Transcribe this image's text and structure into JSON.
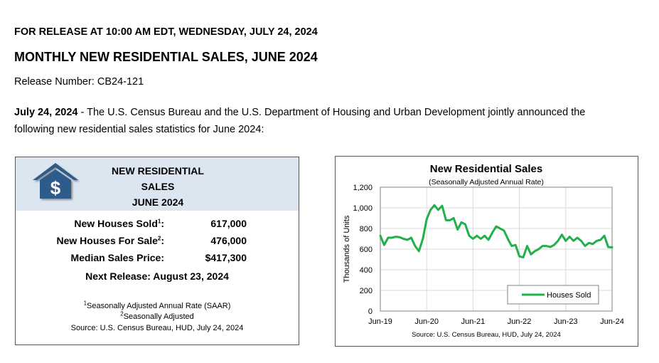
{
  "release": {
    "line1": "FOR RELEASE AT 10:00 AM EDT, WEDNESDAY, JULY 24, 2024",
    "title": "MONTHLY NEW RESIDENTIAL SALES, JUNE 2024",
    "release_number": "Release Number: CB24-121",
    "intro_date": "July 24, 2024",
    "intro_text": " - The U.S. Census Bureau and the U.S. Department of Housing and Urban Development jointly announced the following new residential sales statistics for June 2024:"
  },
  "summary": {
    "logo_icon": "house-dollar-icon",
    "title_lines": [
      "NEW RESIDENTIAL",
      "SALES",
      "JUNE 2024"
    ],
    "rows": [
      {
        "label": "New Houses Sold",
        "sup": "1",
        "suffix": ":",
        "value": "617,000"
      },
      {
        "label": "New Houses For Sale",
        "sup": "2",
        "suffix": ":",
        "value": "476,000"
      },
      {
        "label": "Median Sales Price:",
        "sup": "",
        "suffix": "",
        "value": "$417,300"
      }
    ],
    "next_release": "Next Release:  August 23, 2024",
    "footnote1_sup": "1",
    "footnote1": "Seasonally Adjusted Annual Rate (SAAR)",
    "footnote2_sup": "2",
    "footnote2": "Seasonally Adjusted",
    "source": "Source:  U.S. Census Bureau, HUD, July 24, 2024",
    "colors": {
      "header_bg": "#dce6f1",
      "logo": "#2e5c8a"
    }
  },
  "chart_data": {
    "type": "line",
    "title": "New Residential Sales",
    "subtitle": "(Seasonally Adjusted Annual Rate)",
    "ylabel": "Thousands of Units",
    "xlabel": "",
    "ylim": [
      0,
      1200
    ],
    "yticks": [
      0,
      200,
      400,
      600,
      800,
      1000,
      1200
    ],
    "ytick_labels": [
      "0",
      "200",
      "400",
      "600",
      "800",
      "1,000",
      "1,200"
    ],
    "xticks": [
      "Jun-19",
      "Jun-20",
      "Jun-21",
      "Jun-22",
      "Jun-23",
      "Jun-24"
    ],
    "grid": true,
    "legend": "bottom-right",
    "source": "Source:  U.S. Census Bureau, HUD, July 24, 2024",
    "series": [
      {
        "name": "Houses Sold",
        "color": "#22b04b",
        "x": [
          "2019-06",
          "2019-07",
          "2019-08",
          "2019-09",
          "2019-10",
          "2019-11",
          "2019-12",
          "2020-01",
          "2020-02",
          "2020-03",
          "2020-04",
          "2020-05",
          "2020-06",
          "2020-07",
          "2020-08",
          "2020-09",
          "2020-10",
          "2020-11",
          "2020-12",
          "2021-01",
          "2021-02",
          "2021-03",
          "2021-04",
          "2021-05",
          "2021-06",
          "2021-07",
          "2021-08",
          "2021-09",
          "2021-10",
          "2021-11",
          "2021-12",
          "2022-01",
          "2022-02",
          "2022-03",
          "2022-04",
          "2022-05",
          "2022-06",
          "2022-07",
          "2022-08",
          "2022-09",
          "2022-10",
          "2022-11",
          "2022-12",
          "2023-01",
          "2023-02",
          "2023-03",
          "2023-04",
          "2023-05",
          "2023-06",
          "2023-07",
          "2023-08",
          "2023-09",
          "2023-10",
          "2023-11",
          "2023-12",
          "2024-01",
          "2024-02",
          "2024-03",
          "2024-04",
          "2024-05",
          "2024-06"
        ],
        "values": [
          730,
          640,
          710,
          710,
          720,
          715,
          700,
          690,
          710,
          630,
          580,
          700,
          890,
          980,
          1025,
          980,
          1020,
          880,
          880,
          900,
          790,
          860,
          840,
          730,
          700,
          730,
          700,
          730,
          690,
          760,
          820,
          800,
          780,
          700,
          630,
          640,
          530,
          520,
          630,
          550,
          580,
          600,
          630,
          630,
          620,
          640,
          680,
          740,
          680,
          720,
          680,
          710,
          680,
          630,
          660,
          650,
          680,
          690,
          730,
          620,
          617
        ]
      }
    ]
  }
}
